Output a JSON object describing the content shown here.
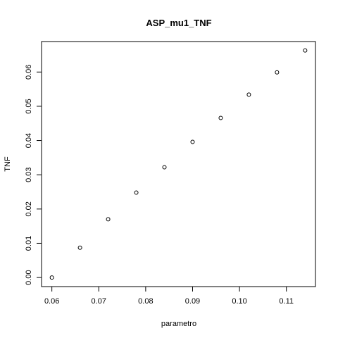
{
  "chart_data": {
    "type": "scatter",
    "title": "ASP_mu1_TNF",
    "xlabel": "parametro",
    "ylabel": "TNF",
    "xlim": [
      0.0578,
      0.1162
    ],
    "ylim": [
      -0.00265,
      0.0689
    ],
    "xticks": [
      {
        "value": 0.06,
        "label": "0.06"
      },
      {
        "value": 0.07,
        "label": "0.07"
      },
      {
        "value": 0.08,
        "label": "0.08"
      },
      {
        "value": 0.09,
        "label": "0.09"
      },
      {
        "value": 0.1,
        "label": "0.10"
      },
      {
        "value": 0.11,
        "label": "0.11"
      }
    ],
    "yticks": [
      {
        "value": 0.0,
        "label": "0.00"
      },
      {
        "value": 0.01,
        "label": "0.01"
      },
      {
        "value": 0.02,
        "label": "0.02"
      },
      {
        "value": 0.03,
        "label": "0.03"
      },
      {
        "value": 0.04,
        "label": "0.04"
      },
      {
        "value": 0.05,
        "label": "0.05"
      },
      {
        "value": 0.06,
        "label": "0.06"
      }
    ],
    "x": [
      0.06,
      0.066,
      0.072,
      0.078,
      0.084,
      0.09,
      0.096,
      0.102,
      0.108,
      0.114
    ],
    "y": [
      0.0,
      0.0087,
      0.017,
      0.0248,
      0.0322,
      0.0396,
      0.0466,
      0.0534,
      0.0599,
      0.0663
    ],
    "grid": false,
    "marker": "open-circle",
    "colors": {
      "marker": "#000000",
      "axis": "#000000",
      "background": "#ffffff"
    }
  }
}
